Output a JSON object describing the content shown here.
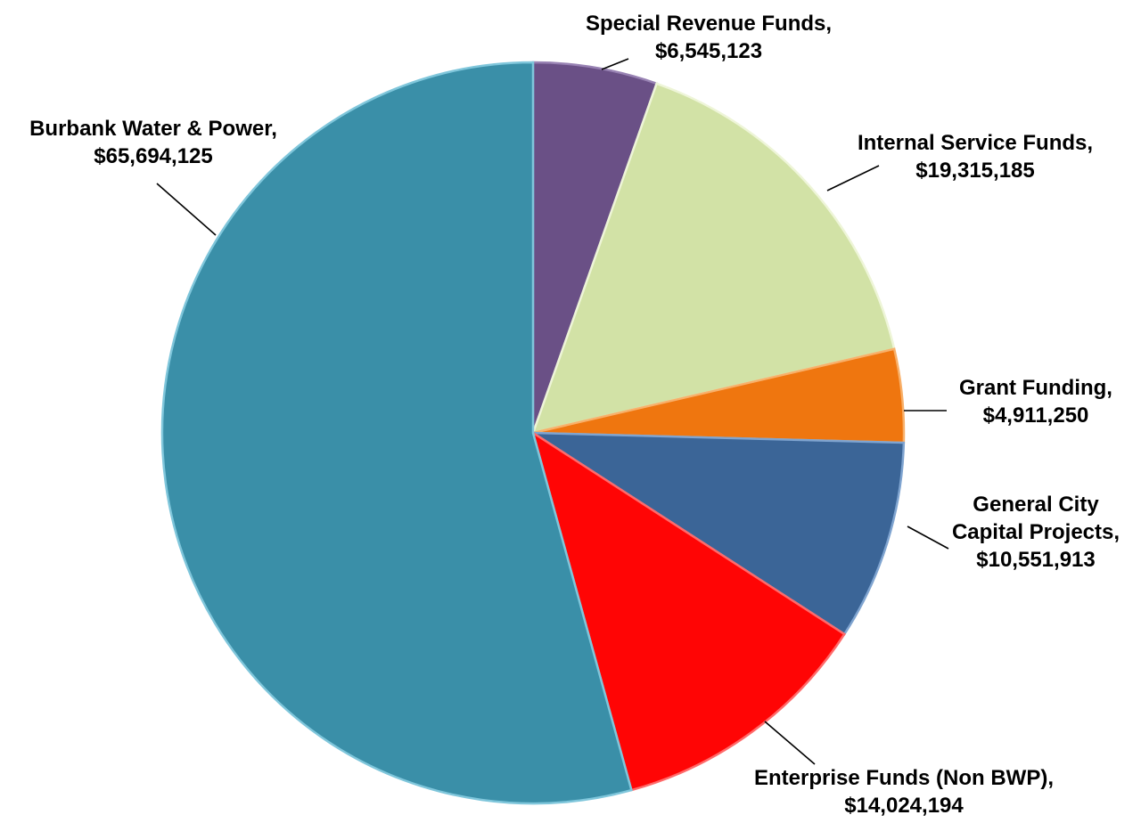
{
  "chart_data": {
    "type": "pie",
    "title": "",
    "series": [
      {
        "values": [
          6545123,
          19315185,
          4911250,
          10551913,
          14024194,
          65694125
        ]
      }
    ],
    "slices": [
      {
        "name": "Special Revenue Funds",
        "value_label": "$6,545,123",
        "value": 6545123,
        "color": "#6a5086",
        "edge": "#9882b3"
      },
      {
        "name": "Internal Service Funds",
        "value_label": "$19,315,185",
        "value": 19315185,
        "color": "#d2e2a6",
        "edge": "#eef5d8"
      },
      {
        "name": "Grant Funding",
        "value_label": "$4,911,250",
        "value": 4911250,
        "color": "#ef760f",
        "edge": "#f8b06a"
      },
      {
        "name": "General City Capital Projects",
        "value_label": "$10,551,913",
        "value": 10551913,
        "color": "#3b6597",
        "edge": "#7fa4d0"
      },
      {
        "name": "Enterprise Funds (Non BWP)",
        "value_label": "$14,024,194",
        "value": 14024194,
        "color": "#ff0505",
        "edge": "#ff6a6a"
      },
      {
        "name": "Burbank Water & Power",
        "value_label": "$65,694,125",
        "value": 65694125,
        "color": "#3a8fa8",
        "edge": "#7fc6db"
      }
    ],
    "labels": [
      {
        "lines": [
          "Special Revenue Funds,",
          "$6,545,123"
        ]
      },
      {
        "lines": [
          "Internal Service Funds,",
          "$19,315,185"
        ]
      },
      {
        "lines": [
          "Grant Funding,",
          "$4,911,250"
        ]
      },
      {
        "lines": [
          "General City",
          "Capital Projects,",
          "$10,551,913"
        ]
      },
      {
        "lines": [
          "Enterprise Funds (Non BWP),",
          "$14,024,194"
        ]
      },
      {
        "lines": [
          "Burbank Water & Power,",
          "$65,694,125"
        ]
      }
    ],
    "legend": "none",
    "data_labels": "outside with leader lines"
  }
}
